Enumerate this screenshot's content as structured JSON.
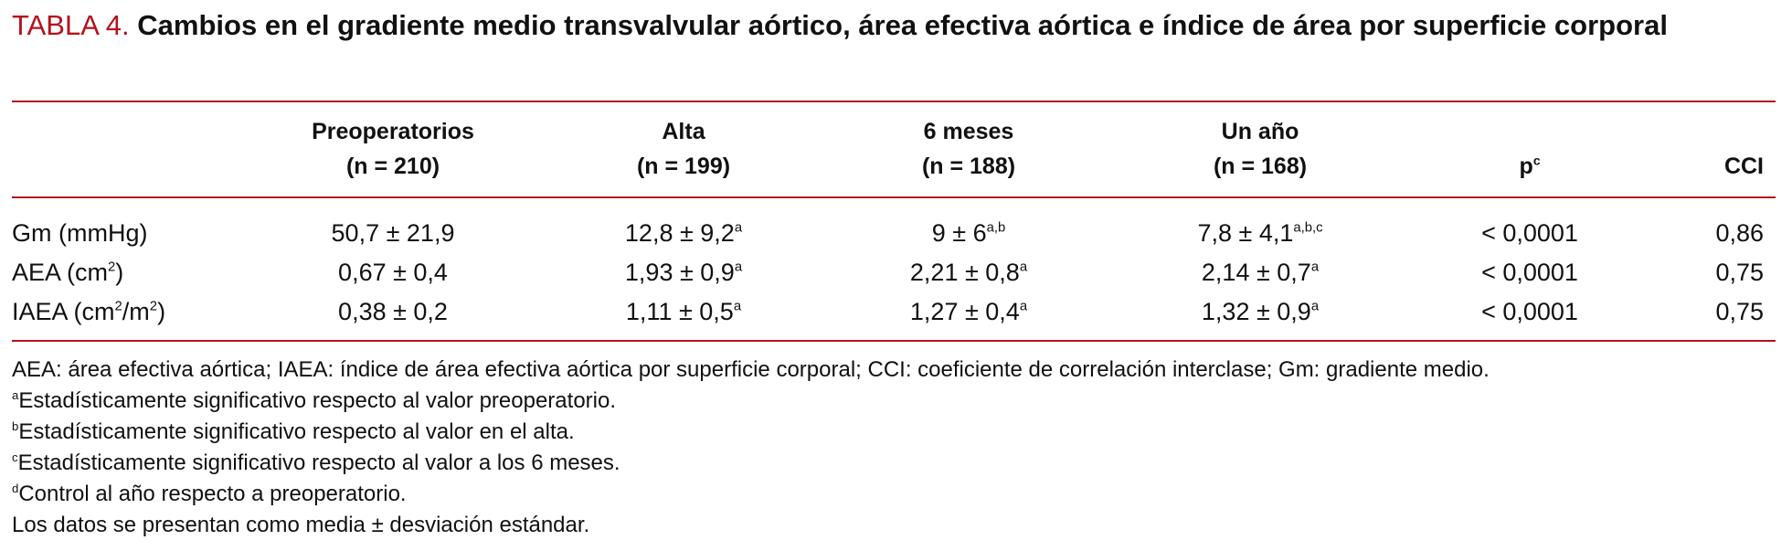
{
  "caption": {
    "label": "TABLA 4.",
    "title": "Cambios en el gradiente medio transvalvular aórtico, área efectiva aórtica e índice de área por superficie corporal"
  },
  "table": {
    "header": [
      [
        "Preoperatorios",
        "(n = 210)"
      ],
      [
        "Alta",
        "(n = 199)"
      ],
      [
        "6 meses",
        "(n = 188)"
      ],
      [
        "Un año",
        "(n = 168)"
      ],
      [
        {
          "text": "p",
          "sup": "c"
        }
      ],
      [
        "CCI"
      ]
    ],
    "rows": [
      {
        "label": [
          "Gm (mmHg)"
        ],
        "cells": [
          {
            "text": "50,7 ± 21,9"
          },
          {
            "text": "12,8 ± 9,2",
            "sup": "a"
          },
          {
            "text": "9 ± 6",
            "sup": "a,b"
          },
          {
            "text": "7,8 ± 4,1",
            "sup": "a,b,c"
          },
          {
            "text": "< 0,0001"
          },
          {
            "text": "0,86"
          }
        ]
      },
      {
        "label": [
          "AEA (cm",
          "2",
          ")"
        ],
        "cells": [
          {
            "text": "0,67 ± 0,4"
          },
          {
            "text": "1,93 ± 0,9",
            "sup": "a"
          },
          {
            "text": "2,21 ± 0,8",
            "sup": "a"
          },
          {
            "text": "2,14 ± 0,7",
            "sup": "a"
          },
          {
            "text": "< 0,0001"
          },
          {
            "text": "0,75"
          }
        ]
      },
      {
        "label": [
          "IAEA (cm",
          "2",
          "/m",
          "2",
          ")"
        ],
        "cells": [
          {
            "text": "0,38 ± 0,2"
          },
          {
            "text": "1,11 ± 0,5",
            "sup": "a"
          },
          {
            "text": "1,27 ± 0,4",
            "sup": "a"
          },
          {
            "text": "1,32 ± 0,9",
            "sup": "a"
          },
          {
            "text": "< 0,0001"
          },
          {
            "text": "0,75"
          }
        ]
      }
    ]
  },
  "footnotes": [
    {
      "text": "AEA: área efectiva aórtica; IAEA: índice de área efectiva aórtica por superficie corporal; CCI: coeficiente de correlación interclase; Gm: gradiente medio."
    },
    {
      "sup": "a",
      "text": "Estadísticamente significativo respecto al valor preoperatorio."
    },
    {
      "sup": "b",
      "text": "Estadísticamente significativo respecto al valor en el alta."
    },
    {
      "sup": "c",
      "text": "Estadísticamente significativo respecto al valor a los 6 meses."
    },
    {
      "sup": "d",
      "text": "Control al año respecto a preoperatorio."
    },
    {
      "text": "Los datos se presentan como media ± desviación estándar."
    }
  ]
}
